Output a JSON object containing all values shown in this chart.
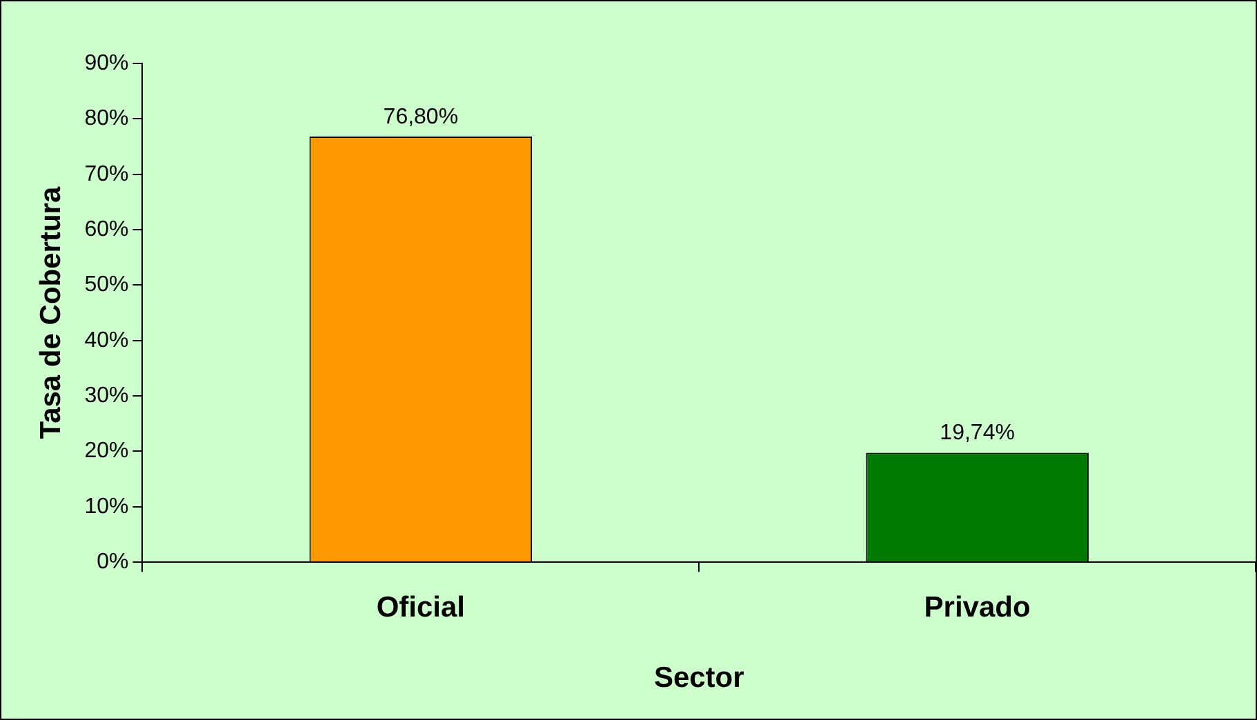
{
  "chart_data": {
    "type": "bar",
    "xlabel": "Sector",
    "ylabel": "Tasa de Cobertura",
    "categories": [
      "Oficial",
      "Privado"
    ],
    "values": [
      76.8,
      19.74
    ],
    "value_labels": [
      "76,80%",
      "19,74%"
    ],
    "colors": [
      "#ff9900",
      "#007a00"
    ],
    "ylim": [
      0,
      90
    ],
    "yticks": [
      {
        "value": 0,
        "label": "0%"
      },
      {
        "value": 10,
        "label": "10%"
      },
      {
        "value": 20,
        "label": "20%"
      },
      {
        "value": 30,
        "label": "30%"
      },
      {
        "value": 40,
        "label": "40%"
      },
      {
        "value": 50,
        "label": "50%"
      },
      {
        "value": 60,
        "label": "60%"
      },
      {
        "value": 70,
        "label": "70%"
      },
      {
        "value": 80,
        "label": "80%"
      },
      {
        "value": 90,
        "label": "90%"
      }
    ],
    "grid": false
  }
}
